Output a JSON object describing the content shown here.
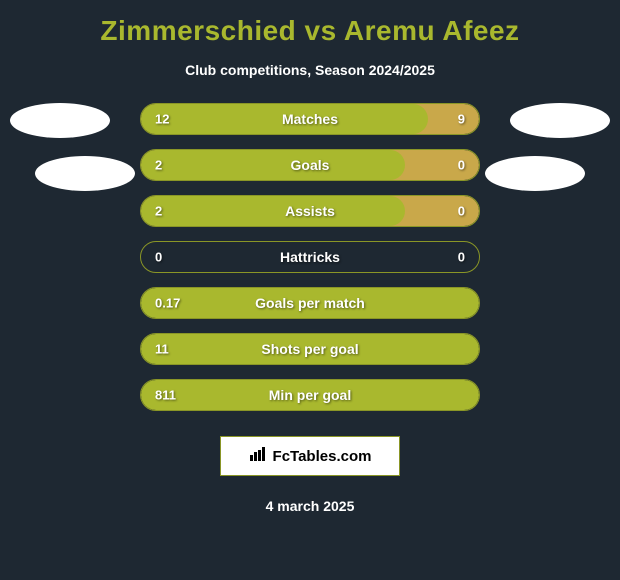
{
  "title": "Zimmerschied vs Aremu Afeez",
  "subtitle": "Club competitions, Season 2024/2025",
  "colors": {
    "background": "#1e2832",
    "accent": "#a9b82e",
    "fill_primary": "#a9b82e",
    "fill_secondary": "#c9a84a",
    "border": "#8a9626",
    "text": "#ffffff",
    "avatar": "#ffffff",
    "logo_bg": "#ffffff"
  },
  "stats": [
    {
      "label": "Matches",
      "left_value": "12",
      "right_value": "9",
      "left_fill_pct": 85,
      "right_fill_pct": 100,
      "left_color": "#a9b82e",
      "right_color": "#c9a84a"
    },
    {
      "label": "Goals",
      "left_value": "2",
      "right_value": "0",
      "left_fill_pct": 78,
      "right_fill_pct": 100,
      "left_color": "#a9b82e",
      "right_color": "#c9a84a"
    },
    {
      "label": "Assists",
      "left_value": "2",
      "right_value": "0",
      "left_fill_pct": 78,
      "right_fill_pct": 100,
      "left_color": "#a9b82e",
      "right_color": "#c9a84a"
    },
    {
      "label": "Hattricks",
      "left_value": "0",
      "right_value": "0",
      "left_fill_pct": 0,
      "right_fill_pct": 0,
      "left_color": "#a9b82e",
      "right_color": "#c9a84a"
    },
    {
      "label": "Goals per match",
      "left_value": "0.17",
      "right_value": "",
      "left_fill_pct": 100,
      "right_fill_pct": 0,
      "left_color": "#a9b82e",
      "right_color": "#c9a84a"
    },
    {
      "label": "Shots per goal",
      "left_value": "11",
      "right_value": "",
      "left_fill_pct": 100,
      "right_fill_pct": 0,
      "left_color": "#a9b82e",
      "right_color": "#c9a84a"
    },
    {
      "label": "Min per goal",
      "left_value": "811",
      "right_value": "",
      "left_fill_pct": 100,
      "right_fill_pct": 0,
      "left_color": "#a9b82e",
      "right_color": "#c9a84a"
    }
  ],
  "logo": {
    "icon": "📊",
    "text": "FcTables.com"
  },
  "date": "4 march 2025"
}
